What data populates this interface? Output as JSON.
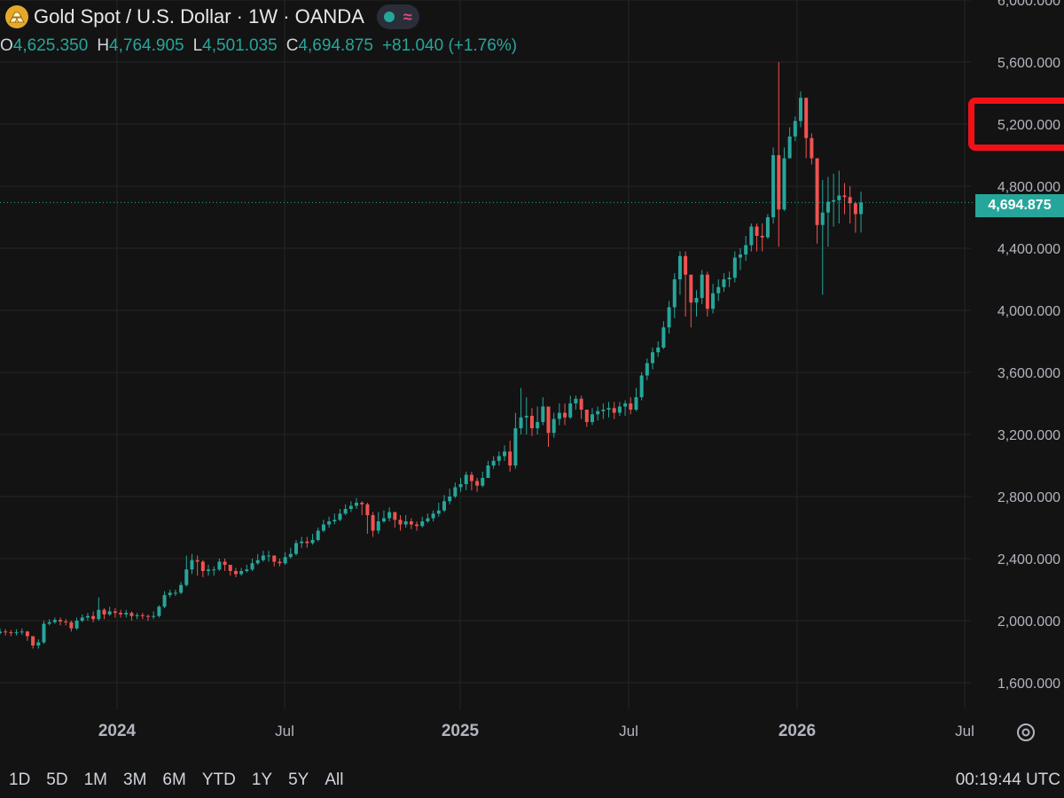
{
  "header": {
    "title": "Gold Spot / U.S. Dollar · 1W · OANDA",
    "pill_wave": "≈"
  },
  "ohlc": {
    "o_label": "O",
    "o_value": "4,625.350",
    "h_label": "H",
    "h_value": "4,764.905",
    "l_label": "L",
    "l_value": "4,501.035",
    "c_label": "C",
    "c_value": "4,694.875",
    "change": "+81.040 (+1.76%)"
  },
  "last_price": "4,694.875",
  "ranges": [
    "1D",
    "5D",
    "1M",
    "3M",
    "6M",
    "YTD",
    "1Y",
    "5Y",
    "All"
  ],
  "clock": "00:19:44 UTC",
  "colors": {
    "up": "#26a69a",
    "down": "#ef5350",
    "background": "#131313",
    "grid": "#242424",
    "highlight": "#f21018"
  },
  "chart_data": {
    "type": "candlestick",
    "title": "Gold Spot / U.S. Dollar · 1W · OANDA",
    "yticks": [
      "1,600.000",
      "2,000.000",
      "2,400.000",
      "2,800.000",
      "3,200.000",
      "3,600.000",
      "4,000.000",
      "4,400.000",
      "4,800.000",
      "5,200.000",
      "5,600.000",
      "6,000.000"
    ],
    "ytick_values": [
      1600,
      2000,
      2400,
      2800,
      3200,
      3600,
      4000,
      4400,
      4800,
      5200,
      5600,
      6000
    ],
    "xticks": [
      "2024",
      "Jul",
      "2025",
      "Jul",
      "2026",
      "Jul"
    ],
    "xtick_bold": [
      true,
      false,
      true,
      false,
      true,
      false
    ],
    "ylim": [
      1400,
      6050
    ],
    "highlighted_tick": "5,200.000",
    "closes": [
      1930,
      1925,
      1922,
      1925,
      1930,
      1900,
      1840,
      1860,
      1980,
      1990,
      2005,
      1995,
      1990,
      1950,
      2000,
      2020,
      2030,
      2010,
      2070,
      2040,
      2060,
      2050,
      2040,
      2050,
      2030,
      2035,
      2030,
      2025,
      2030,
      2090,
      2165,
      2180,
      2180,
      2230,
      2330,
      2390,
      2380,
      2320,
      2330,
      2330,
      2380,
      2360,
      2320,
      2300,
      2320,
      2330,
      2370,
      2390,
      2420,
      2420,
      2380,
      2370,
      2410,
      2430,
      2500,
      2510,
      2500,
      2520,
      2580,
      2620,
      2640,
      2650,
      2690,
      2720,
      2740,
      2760,
      2750,
      2680,
      2580,
      2640,
      2660,
      2700,
      2650,
      2620,
      2640,
      2620,
      2610,
      2640,
      2660,
      2690,
      2710,
      2770,
      2800,
      2860,
      2880,
      2940,
      2900,
      2870,
      2920,
      3000,
      3030,
      3060,
      3090,
      3000,
      3240,
      3310,
      3320,
      3240,
      3280,
      3380,
      3210,
      3300,
      3340,
      3310,
      3400,
      3430,
      3360,
      3280,
      3330,
      3350,
      3360,
      3370,
      3340,
      3380,
      3400,
      3360,
      3440,
      3580,
      3660,
      3730,
      3760,
      3890,
      4020,
      4200,
      4350,
      4230,
      4050,
      4080,
      4230,
      4010,
      4110,
      4150,
      4200,
      4210,
      4340,
      4360,
      4420,
      4540,
      4480,
      4470,
      4600,
      5000,
      4650,
      4980,
      5120,
      5220,
      5370,
      5110,
      4980,
      4550,
      4630,
      4700,
      4710,
      4740,
      4730,
      4690,
      4620,
      4694.875
    ],
    "highs": [
      1950,
      1945,
      1940,
      1945,
      1950,
      1935,
      1890,
      1880,
      2000,
      2010,
      2020,
      2020,
      2010,
      2000,
      2020,
      2040,
      2050,
      2060,
      2150,
      2080,
      2090,
      2080,
      2070,
      2070,
      2060,
      2050,
      2050,
      2040,
      2060,
      2100,
      2190,
      2200,
      2200,
      2250,
      2420,
      2430,
      2420,
      2390,
      2360,
      2350,
      2400,
      2400,
      2350,
      2340,
      2340,
      2360,
      2400,
      2430,
      2450,
      2450,
      2420,
      2400,
      2440,
      2470,
      2520,
      2540,
      2540,
      2560,
      2600,
      2650,
      2670,
      2690,
      2720,
      2750,
      2770,
      2790,
      2770,
      2760,
      2700,
      2700,
      2710,
      2730,
      2700,
      2680,
      2680,
      2660,
      2640,
      2670,
      2690,
      2710,
      2760,
      2810,
      2850,
      2890,
      2920,
      2960,
      2960,
      2920,
      2960,
      3030,
      3060,
      3090,
      3130,
      3160,
      3340,
      3500,
      3440,
      3370,
      3380,
      3440,
      3300,
      3340,
      3400,
      3400,
      3450,
      3450,
      3450,
      3360,
      3370,
      3380,
      3400,
      3410,
      3410,
      3410,
      3420,
      3440,
      3500,
      3600,
      3690,
      3760,
      3800,
      3930,
      4060,
      4240,
      4380,
      4380,
      4150,
      4130,
      4260,
      4250,
      4170,
      4200,
      4240,
      4250,
      4380,
      4400,
      4480,
      4560,
      4560,
      4560,
      4620,
      5050,
      5600,
      5050,
      5180,
      5250,
      5410,
      5260,
      5140,
      4900,
      4840,
      4860,
      4880,
      4900,
      4820,
      4800,
      4700,
      4764.905
    ],
    "lows": [
      1910,
      1905,
      1900,
      1905,
      1910,
      1870,
      1820,
      1820,
      1850,
      1970,
      1980,
      1970,
      1970,
      1930,
      1940,
      1990,
      2000,
      1990,
      2000,
      2010,
      2030,
      2020,
      2020,
      2020,
      2000,
      2010,
      2010,
      2000,
      2010,
      2020,
      2080,
      2150,
      2160,
      2170,
      2220,
      2300,
      2290,
      2280,
      2290,
      2290,
      2320,
      2320,
      2290,
      2280,
      2290,
      2310,
      2320,
      2360,
      2380,
      2380,
      2350,
      2350,
      2360,
      2400,
      2420,
      2470,
      2470,
      2490,
      2510,
      2570,
      2600,
      2620,
      2640,
      2680,
      2700,
      2720,
      2680,
      2560,
      2540,
      2560,
      2630,
      2640,
      2600,
      2580,
      2600,
      2590,
      2580,
      2600,
      2630,
      2640,
      2670,
      2700,
      2750,
      2790,
      2830,
      2840,
      2840,
      2830,
      2860,
      2920,
      2980,
      3000,
      3030,
      2960,
      2980,
      3200,
      3200,
      3190,
      3200,
      3260,
      3120,
      3180,
      3260,
      3260,
      3300,
      3360,
      3300,
      3250,
      3260,
      3290,
      3300,
      3310,
      3300,
      3320,
      3320,
      3330,
      3350,
      3420,
      3550,
      3620,
      3700,
      3750,
      3850,
      3950,
      4100,
      3960,
      3890,
      3960,
      4040,
      3960,
      3980,
      4060,
      4120,
      4150,
      4180,
      4260,
      4320,
      4380,
      4380,
      4380,
      4460,
      4560,
      4410,
      4640,
      4980,
      5090,
      5180,
      4980,
      4940,
      4430,
      4100,
      4410,
      4540,
      4560,
      4620,
      4560,
      4500,
      4501.035
    ]
  }
}
